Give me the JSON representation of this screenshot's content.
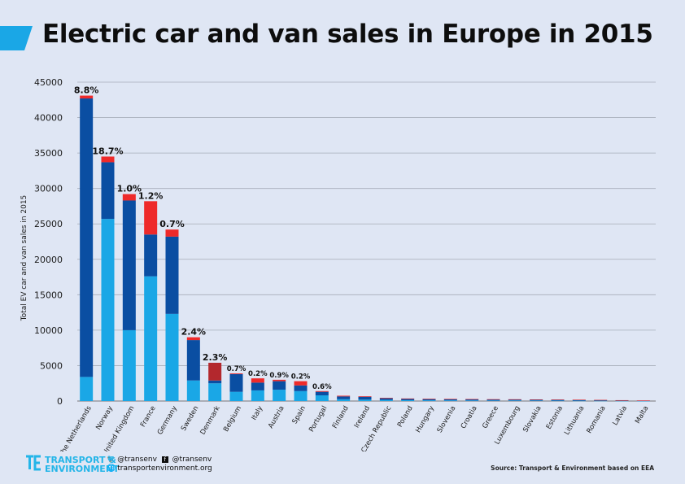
{
  "title": "Electric car and van sales in Europe in 2015",
  "colors": {
    "accent": "#1aa7e6",
    "dark_blue": "#0a4ea2",
    "light_blue": "#1aa7e6",
    "red": "#ee2a2a",
    "dark_red": "#b3282d",
    "gridline": "#a6acb8",
    "background": "#dfe6f4"
  },
  "footer": {
    "logo_line1": "TRANSPORT &",
    "logo_line2": "ENVIRONMENT",
    "twitter": "@transenv",
    "facebook": "@transenv",
    "website": "transportenvironment.org",
    "source": "Source: Transport & Environment based on EEA"
  },
  "chart_data": {
    "type": "bar",
    "stacked": true,
    "ylabel": "Total EV car and van sales in 2015",
    "ylim": [
      0,
      45000
    ],
    "yticks": [
      0,
      5000,
      10000,
      15000,
      20000,
      25000,
      30000,
      35000,
      40000,
      45000
    ],
    "grid": true,
    "categories": [
      "The Netherlands",
      "Norway",
      "United Kingdom",
      "France",
      "Germany",
      "Sweden",
      "Denmark",
      "Belgium",
      "Italy",
      "Austria",
      "Spain",
      "Portugal",
      "Finland",
      "Ireland",
      "Czech Republic",
      "Poland",
      "Hungary",
      "Slovenia",
      "Croatia",
      "Greece",
      "Luxembourg",
      "Slovakia",
      "Estonia",
      "Lithuania",
      "Romania",
      "Latvia",
      "Malta"
    ],
    "series": [
      {
        "values": [
          3400,
          25700,
          10000,
          17600,
          12300,
          2900,
          2500,
          1300,
          1500,
          1600,
          1400,
          800,
          250,
          200,
          150,
          120,
          100,
          90,
          80,
          70,
          80,
          70,
          60,
          50,
          40,
          30,
          20
        ]
      },
      {
        "values": [
          39300,
          8000,
          18300,
          5900,
          10900,
          5700,
          400,
          2500,
          1100,
          1200,
          800,
          500,
          400,
          400,
          250,
          200,
          180,
          170,
          170,
          150,
          140,
          130,
          120,
          110,
          90,
          70,
          40
        ]
      },
      {
        "values": [
          400,
          800,
          900,
          4700,
          1000,
          400,
          2500,
          100,
          600,
          200,
          600,
          100,
          100,
          80,
          50,
          40,
          40,
          40,
          30,
          40,
          30,
          30,
          30,
          30,
          30,
          20,
          20
        ]
      }
    ],
    "series_colors": [
      "#1aa7e6",
      "#0a4ea2",
      "#ee2a2a"
    ],
    "bar_color_overrides": {
      "Denmark": {
        "2": "#b3282d"
      }
    },
    "annotations": [
      "8.8%",
      "18.7%",
      "1.0%",
      "1.2%",
      "0.7%",
      "2.4%",
      "2.3%",
      "0.7%",
      "0.2%",
      "0.9%",
      "0.2%",
      "0.6%",
      "",
      "",
      "",
      "",
      "",
      "",
      "",
      "",
      "",
      "",
      "",
      "",
      "",
      "",
      ""
    ]
  }
}
